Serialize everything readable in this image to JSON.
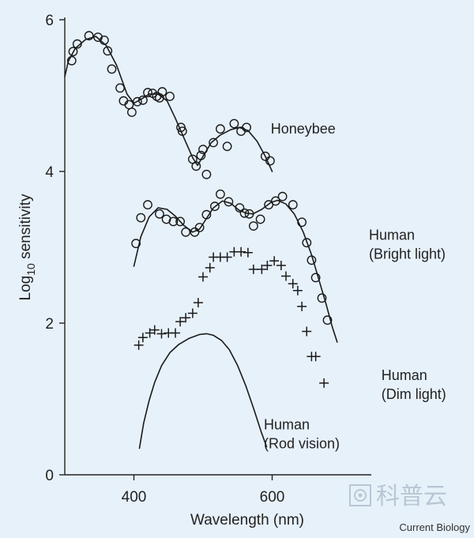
{
  "chart_data": {
    "type": "scatter",
    "xlabel": "Wavelength (nm)",
    "ylabel_main": "Log",
    "ylabel_sub": "10",
    "ylabel_rest": " sensitivity",
    "xlim": [
      300,
      700
    ],
    "ylim": [
      0,
      6
    ],
    "xticks": [
      400,
      600
    ],
    "yticks": [
      0,
      2,
      4,
      6
    ],
    "grid": false,
    "annotations": [
      {
        "lines": [
          "Honeybee"
        ],
        "x": 598,
        "y": 4.5
      },
      {
        "lines": [
          "Human",
          "(Bright light)"
        ],
        "x": 740,
        "y": 3.1
      },
      {
        "lines": [
          "Human",
          "(Dim light)"
        ],
        "x": 758,
        "y": 1.25
      },
      {
        "lines": [
          "Human",
          "(Rod vision)"
        ],
        "x": 588,
        "y": 0.6
      }
    ],
    "series": [
      {
        "marker": "circle",
        "points": [
          [
            310,
            5.46
          ],
          [
            312,
            5.58
          ],
          [
            318,
            5.68
          ],
          [
            335,
            5.79
          ],
          [
            348,
            5.77
          ],
          [
            357,
            5.73
          ],
          [
            362,
            5.59
          ],
          [
            368,
            5.35
          ],
          [
            380,
            5.1
          ],
          [
            385,
            4.93
          ],
          [
            393,
            4.88
          ],
          [
            397,
            4.78
          ],
          [
            405,
            4.92
          ],
          [
            413,
            4.94
          ],
          [
            420,
            5.04
          ],
          [
            427,
            5.03
          ],
          [
            433,
            4.99
          ],
          [
            437,
            4.97
          ],
          [
            441,
            5.05
          ],
          [
            452,
            4.99
          ],
          [
            468,
            4.58
          ],
          [
            470,
            4.53
          ],
          [
            485,
            4.16
          ],
          [
            490,
            4.07
          ],
          [
            497,
            4.21
          ],
          [
            500,
            4.29
          ],
          [
            505,
            3.96
          ],
          [
            515,
            4.38
          ],
          [
            525,
            4.56
          ],
          [
            535,
            4.33
          ],
          [
            545,
            4.63
          ],
          [
            555,
            4.53
          ],
          [
            563,
            4.58
          ],
          [
            590,
            4.2
          ],
          [
            597,
            4.14
          ]
        ]
      },
      {
        "marker": "circle",
        "points": [
          [
            403,
            3.05
          ],
          [
            410,
            3.39
          ],
          [
            420,
            3.56
          ],
          [
            437,
            3.44
          ],
          [
            447,
            3.37
          ],
          [
            457,
            3.34
          ],
          [
            467,
            3.34
          ],
          [
            475,
            3.2
          ],
          [
            488,
            3.2
          ],
          [
            495,
            3.26
          ],
          [
            505,
            3.43
          ],
          [
            517,
            3.54
          ],
          [
            525,
            3.7
          ],
          [
            537,
            3.6
          ],
          [
            553,
            3.52
          ],
          [
            560,
            3.45
          ],
          [
            567,
            3.44
          ],
          [
            573,
            3.28
          ],
          [
            583,
            3.37
          ],
          [
            595,
            3.56
          ],
          [
            605,
            3.61
          ],
          [
            615,
            3.67
          ],
          [
            630,
            3.56
          ],
          [
            643,
            3.33
          ],
          [
            650,
            3.06
          ],
          [
            657,
            2.83
          ],
          [
            663,
            2.6
          ],
          [
            672,
            2.33
          ],
          [
            680,
            2.04
          ]
        ]
      },
      {
        "marker": "plus",
        "points": [
          [
            407,
            1.71
          ],
          [
            413,
            1.81
          ],
          [
            423,
            1.87
          ],
          [
            430,
            1.91
          ],
          [
            440,
            1.86
          ],
          [
            450,
            1.87
          ],
          [
            460,
            1.87
          ],
          [
            467,
            2.02
          ],
          [
            475,
            2.07
          ],
          [
            485,
            2.13
          ],
          [
            493,
            2.27
          ],
          [
            500,
            2.61
          ],
          [
            510,
            2.73
          ],
          [
            515,
            2.87
          ],
          [
            525,
            2.87
          ],
          [
            535,
            2.87
          ],
          [
            545,
            2.94
          ],
          [
            555,
            2.94
          ],
          [
            565,
            2.93
          ],
          [
            573,
            2.71
          ],
          [
            585,
            2.71
          ],
          [
            593,
            2.76
          ],
          [
            603,
            2.82
          ],
          [
            613,
            2.76
          ],
          [
            620,
            2.62
          ],
          [
            630,
            2.52
          ],
          [
            637,
            2.43
          ],
          [
            643,
            2.22
          ],
          [
            650,
            1.89
          ],
          [
            657,
            1.56
          ],
          [
            663,
            1.56
          ],
          [
            675,
            1.21
          ]
        ]
      },
      {
        "marker": "none",
        "points": [
          [
            300,
            5.25
          ],
          [
            305,
            5.45
          ],
          [
            315,
            5.62
          ],
          [
            330,
            5.74
          ],
          [
            345,
            5.78
          ],
          [
            360,
            5.66
          ],
          [
            375,
            5.4
          ],
          [
            390,
            5.02
          ],
          [
            400,
            4.9
          ],
          [
            410,
            4.95
          ],
          [
            422,
            5.02
          ],
          [
            435,
            5.02
          ],
          [
            448,
            4.93
          ],
          [
            460,
            4.7
          ],
          [
            472,
            4.45
          ],
          [
            485,
            4.18
          ],
          [
            492,
            4.08
          ],
          [
            500,
            4.2
          ],
          [
            512,
            4.38
          ],
          [
            525,
            4.48
          ],
          [
            540,
            4.55
          ],
          [
            552,
            4.58
          ],
          [
            565,
            4.54
          ],
          [
            578,
            4.4
          ],
          [
            590,
            4.2
          ],
          [
            600,
            4.0
          ]
        ]
      },
      {
        "marker": "none",
        "points": [
          [
            400,
            2.75
          ],
          [
            410,
            3.14
          ],
          [
            422,
            3.4
          ],
          [
            435,
            3.52
          ],
          [
            448,
            3.5
          ],
          [
            460,
            3.41
          ],
          [
            472,
            3.29
          ],
          [
            485,
            3.2
          ],
          [
            495,
            3.24
          ],
          [
            505,
            3.38
          ],
          [
            515,
            3.52
          ],
          [
            528,
            3.61
          ],
          [
            540,
            3.58
          ],
          [
            552,
            3.49
          ],
          [
            562,
            3.45
          ],
          [
            572,
            3.44
          ],
          [
            585,
            3.5
          ],
          [
            598,
            3.59
          ],
          [
            608,
            3.62
          ],
          [
            620,
            3.57
          ],
          [
            632,
            3.44
          ],
          [
            645,
            3.2
          ],
          [
            657,
            2.9
          ],
          [
            668,
            2.56
          ],
          [
            678,
            2.25
          ],
          [
            687,
            1.95
          ],
          [
            694,
            1.75
          ]
        ]
      },
      {
        "marker": "none",
        "points": [
          [
            408,
            0.35
          ],
          [
            414,
            0.68
          ],
          [
            422,
            0.98
          ],
          [
            430,
            1.22
          ],
          [
            440,
            1.44
          ],
          [
            452,
            1.61
          ],
          [
            465,
            1.72
          ],
          [
            480,
            1.8
          ],
          [
            495,
            1.85
          ],
          [
            505,
            1.86
          ],
          [
            515,
            1.84
          ],
          [
            527,
            1.77
          ],
          [
            538,
            1.65
          ],
          [
            550,
            1.44
          ],
          [
            562,
            1.17
          ],
          [
            574,
            0.85
          ],
          [
            584,
            0.57
          ],
          [
            592,
            0.37
          ]
        ]
      }
    ],
    "source_label": "Current Biology",
    "watermark": "科普云"
  }
}
